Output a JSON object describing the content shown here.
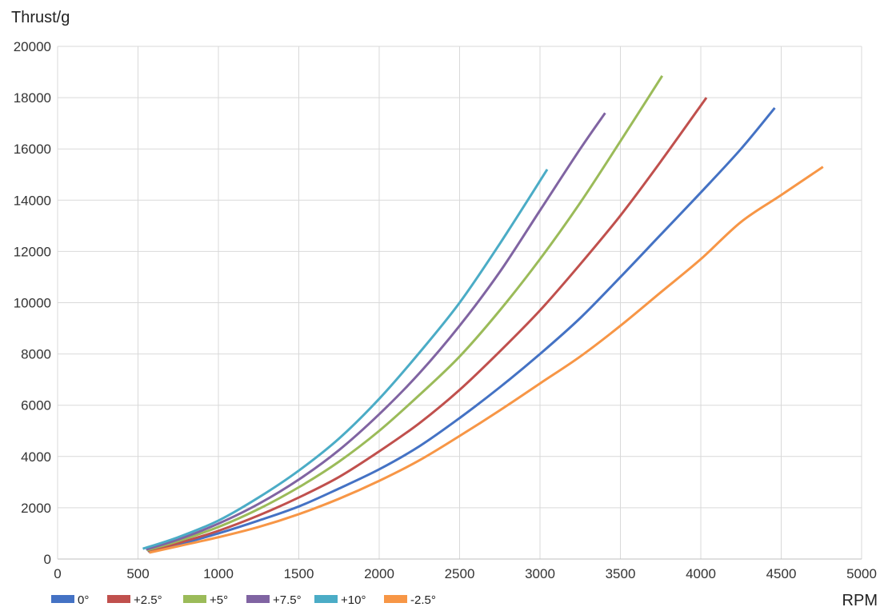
{
  "chart_data": {
    "type": "line",
    "title": "",
    "xlabel": "RPM",
    "ylabel": "Thrust/g",
    "xlim": [
      0,
      5000
    ],
    "ylim": [
      0,
      20000
    ],
    "xticks": [
      0,
      500,
      1000,
      1500,
      2000,
      2500,
      3000,
      3500,
      4000,
      4500,
      5000
    ],
    "yticks": [
      0,
      2000,
      4000,
      6000,
      8000,
      10000,
      12000,
      14000,
      16000,
      18000,
      20000
    ],
    "grid": true,
    "legend_position": "bottom-left",
    "series": [
      {
        "name": "0°",
        "color": "#4472C4",
        "x": [
          565,
          750,
          1000,
          1250,
          1500,
          1750,
          2000,
          2250,
          2500,
          2750,
          3000,
          3250,
          3500,
          3750,
          4000,
          4250,
          4460
        ],
        "y": [
          280,
          560,
          1000,
          1500,
          2050,
          2750,
          3500,
          4400,
          5500,
          6700,
          8000,
          9400,
          11000,
          12650,
          14300,
          16000,
          17600
        ]
      },
      {
        "name": "+2.5°",
        "color": "#C0504D",
        "x": [
          560,
          750,
          1000,
          1250,
          1500,
          1750,
          2000,
          2250,
          2500,
          2750,
          3000,
          3250,
          3500,
          3750,
          4035
        ],
        "y": [
          310,
          620,
          1100,
          1700,
          2400,
          3200,
          4200,
          5300,
          6600,
          8100,
          9700,
          11500,
          13400,
          15500,
          18000
        ]
      },
      {
        "name": "+5°",
        "color": "#9BBB59",
        "x": [
          555,
          750,
          1000,
          1250,
          1500,
          1750,
          2000,
          2250,
          2500,
          2750,
          3000,
          3250,
          3500,
          3760
        ],
        "y": [
          340,
          700,
          1250,
          1950,
          2800,
          3800,
          5000,
          6400,
          7900,
          9700,
          11700,
          13900,
          16300,
          18850
        ]
      },
      {
        "name": "+7.5°",
        "color": "#8064A2",
        "x": [
          550,
          750,
          1000,
          1250,
          1500,
          1750,
          2000,
          2250,
          2500,
          2750,
          3000,
          3250,
          3405
        ],
        "y": [
          370,
          760,
          1380,
          2150,
          3100,
          4250,
          5650,
          7250,
          9100,
          11200,
          13600,
          16000,
          17400
        ]
      },
      {
        "name": "+10°",
        "color": "#4BACC6",
        "x": [
          530,
          750,
          1000,
          1250,
          1500,
          1750,
          2000,
          2250,
          2500,
          2750,
          3045
        ],
        "y": [
          400,
          850,
          1500,
          2400,
          3450,
          4700,
          6250,
          8050,
          10000,
          12300,
          15200
        ]
      },
      {
        "name": "-2.5°",
        "color": "#F79646",
        "x": [
          570,
          750,
          1000,
          1250,
          1500,
          1750,
          2000,
          2250,
          2500,
          2750,
          3000,
          3250,
          3500,
          3750,
          4000,
          4250,
          4500,
          4760
        ],
        "y": [
          250,
          500,
          850,
          1250,
          1750,
          2350,
          3050,
          3850,
          4800,
          5800,
          6850,
          7900,
          9100,
          10400,
          11700,
          13150,
          14200,
          15300
        ]
      }
    ]
  }
}
